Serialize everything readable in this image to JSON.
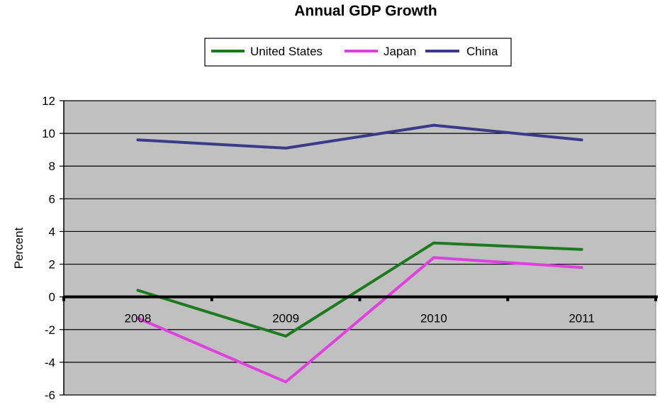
{
  "chart_data": {
    "type": "line",
    "title": "Annual GDP Growth",
    "xlabel": "",
    "ylabel": "Percent",
    "categories": [
      "2008",
      "2009",
      "2010",
      "2011"
    ],
    "ylim": [
      -6,
      12
    ],
    "yticks": [
      12,
      10,
      8,
      6,
      4,
      2,
      0,
      -2,
      -4,
      -6
    ],
    "grid": true,
    "legend_position": "top",
    "plot_background": "#c0c0c0",
    "series": [
      {
        "name": "United States",
        "color": "#1e7a1e",
        "values": [
          0.4,
          -2.4,
          3.3,
          2.9
        ]
      },
      {
        "name": "Japan",
        "color": "#e040e0",
        "values": [
          -1.3,
          -5.2,
          2.4,
          1.8
        ]
      },
      {
        "name": "China",
        "color": "#3a3a8a",
        "values": [
          9.6,
          9.1,
          10.5,
          9.6
        ]
      }
    ]
  }
}
